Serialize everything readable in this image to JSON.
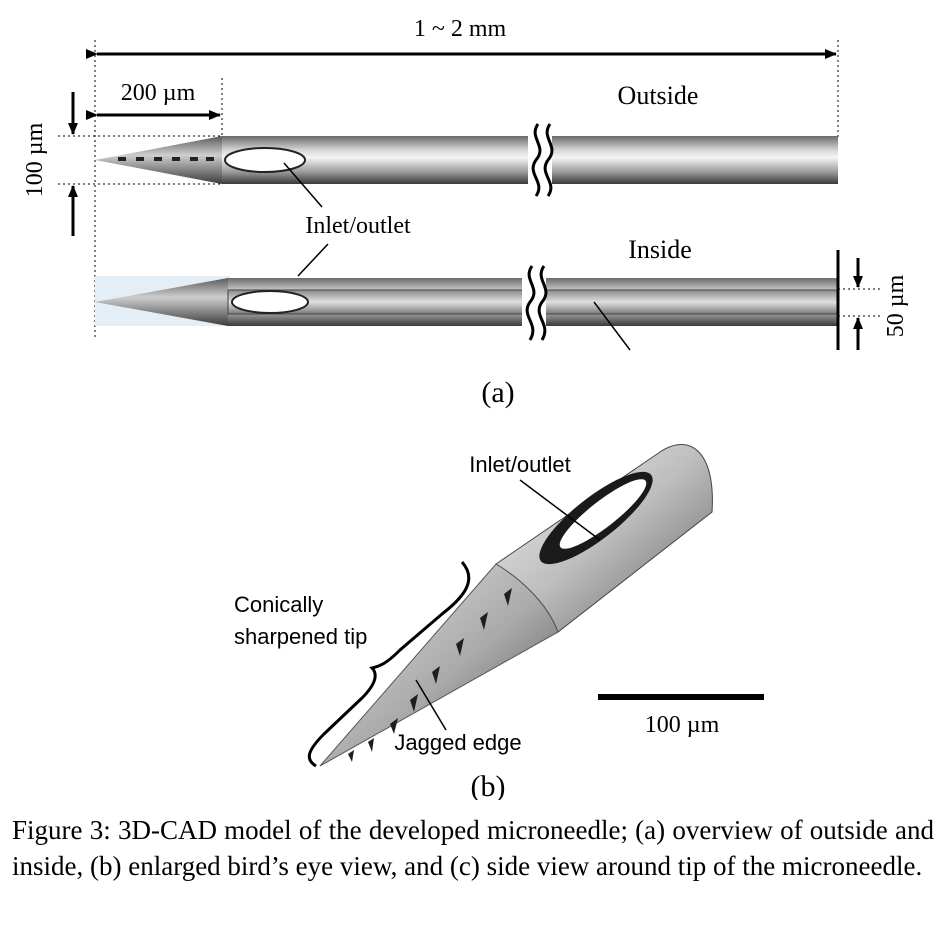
{
  "panel_a": {
    "total_length": "1 ~ 2 mm",
    "tip_length": "200 µm",
    "diameter": "100 µm",
    "outside_label": "Outside",
    "inside_label": "Inside",
    "inlet_label": "Inlet/outlet",
    "inner_diameter": "50 µm",
    "panel_label": "(a)"
  },
  "panel_b": {
    "inlet_label": "Inlet/outlet",
    "tip_label_line1": "Conically",
    "tip_label_line2": "sharpened tip",
    "jagged_label": "Jagged edge",
    "scale_label": "100 µm",
    "panel_label": "(b)"
  },
  "caption": {
    "text": "Figure 3: 3D-CAD model of the developed microneedle; (a) overview of outside and inside, (b) enlarged bird’s eye view, and (c) side view around tip of the microneedle."
  }
}
